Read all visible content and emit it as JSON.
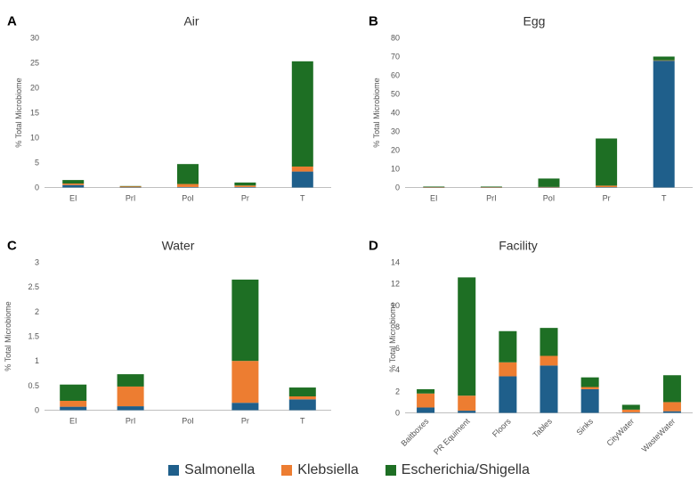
{
  "legend": [
    {
      "name": "Salmonella",
      "color": "#1f5f8b"
    },
    {
      "name": "Klebsiella",
      "color": "#ed7d31"
    },
    {
      "name": "Escherichia/Shigella",
      "color": "#1e6f24"
    }
  ],
  "chart_data": [
    {
      "panel": "A",
      "type": "bar",
      "stacked": true,
      "title": "Air",
      "xlabel": "",
      "ylabel": "% Total Microbiome",
      "ylim": [
        0,
        30
      ],
      "yticks": [
        0,
        5,
        10,
        15,
        20,
        25,
        30
      ],
      "categories": [
        "EI",
        "PrI",
        "PoI",
        "Pr",
        "T"
      ],
      "series": [
        {
          "name": "Salmonella",
          "values": [
            0.5,
            0.05,
            0.1,
            0.1,
            3.2
          ]
        },
        {
          "name": "Klebsiella",
          "values": [
            0.3,
            0.2,
            0.6,
            0.3,
            1.0
          ]
        },
        {
          "name": "Escherichia/Shigella",
          "values": [
            0.7,
            0.05,
            4.0,
            0.6,
            21.1
          ]
        }
      ]
    },
    {
      "panel": "B",
      "type": "bar",
      "stacked": true,
      "title": "Egg",
      "xlabel": "",
      "ylabel": "% Total Microbiome",
      "ylim": [
        0,
        80
      ],
      "yticks": [
        0,
        10,
        20,
        30,
        40,
        50,
        60,
        70,
        80
      ],
      "categories": [
        "EI",
        "PrI",
        "PoI",
        "Pr",
        "T"
      ],
      "series": [
        {
          "name": "Salmonella",
          "values": [
            0.1,
            0.1,
            0.1,
            0.2,
            67.8
          ]
        },
        {
          "name": "Klebsiella",
          "values": [
            0.1,
            0.1,
            0.2,
            0.8,
            0.2
          ]
        },
        {
          "name": "Escherichia/Shigella",
          "values": [
            0.3,
            0.3,
            4.5,
            25.2,
            2.0
          ]
        }
      ]
    },
    {
      "panel": "C",
      "type": "bar",
      "stacked": true,
      "title": "Water",
      "xlabel": "",
      "ylabel": "% Total Microbiome",
      "ylim": [
        0,
        3
      ],
      "yticks": [
        0,
        0.5,
        1,
        1.5,
        2,
        2.5,
        3
      ],
      "categories": [
        "EI",
        "PrI",
        "PoI",
        "Pr",
        "T"
      ],
      "series": [
        {
          "name": "Salmonella",
          "values": [
            0.07,
            0.08,
            0,
            0.15,
            0.22
          ]
        },
        {
          "name": "Klebsiella",
          "values": [
            0.12,
            0.4,
            0,
            0.85,
            0.06
          ]
        },
        {
          "name": "Escherichia/Shigella",
          "values": [
            0.33,
            0.25,
            0,
            1.65,
            0.18
          ]
        }
      ]
    },
    {
      "panel": "D",
      "type": "bar",
      "stacked": true,
      "title": "Facility",
      "xlabel": "",
      "ylabel": "% Total Microbiome",
      "ylim": [
        0,
        14
      ],
      "yticks": [
        0,
        2,
        4,
        6,
        8,
        10,
        12,
        14
      ],
      "categories": [
        "Baitboxes",
        "PR Equiment",
        "Floors",
        "Tables",
        "Sinks",
        "CityWater",
        "WasteWater"
      ],
      "series": [
        {
          "name": "Salmonella",
          "values": [
            0.5,
            0.2,
            3.4,
            4.4,
            2.2,
            0.05,
            0.15
          ]
        },
        {
          "name": "Klebsiella",
          "values": [
            1.3,
            1.4,
            1.3,
            0.9,
            0.2,
            0.25,
            0.85
          ]
        },
        {
          "name": "Escherichia/Shigella",
          "values": [
            0.4,
            11.0,
            2.9,
            2.6,
            0.9,
            0.45,
            2.5
          ]
        }
      ]
    }
  ]
}
